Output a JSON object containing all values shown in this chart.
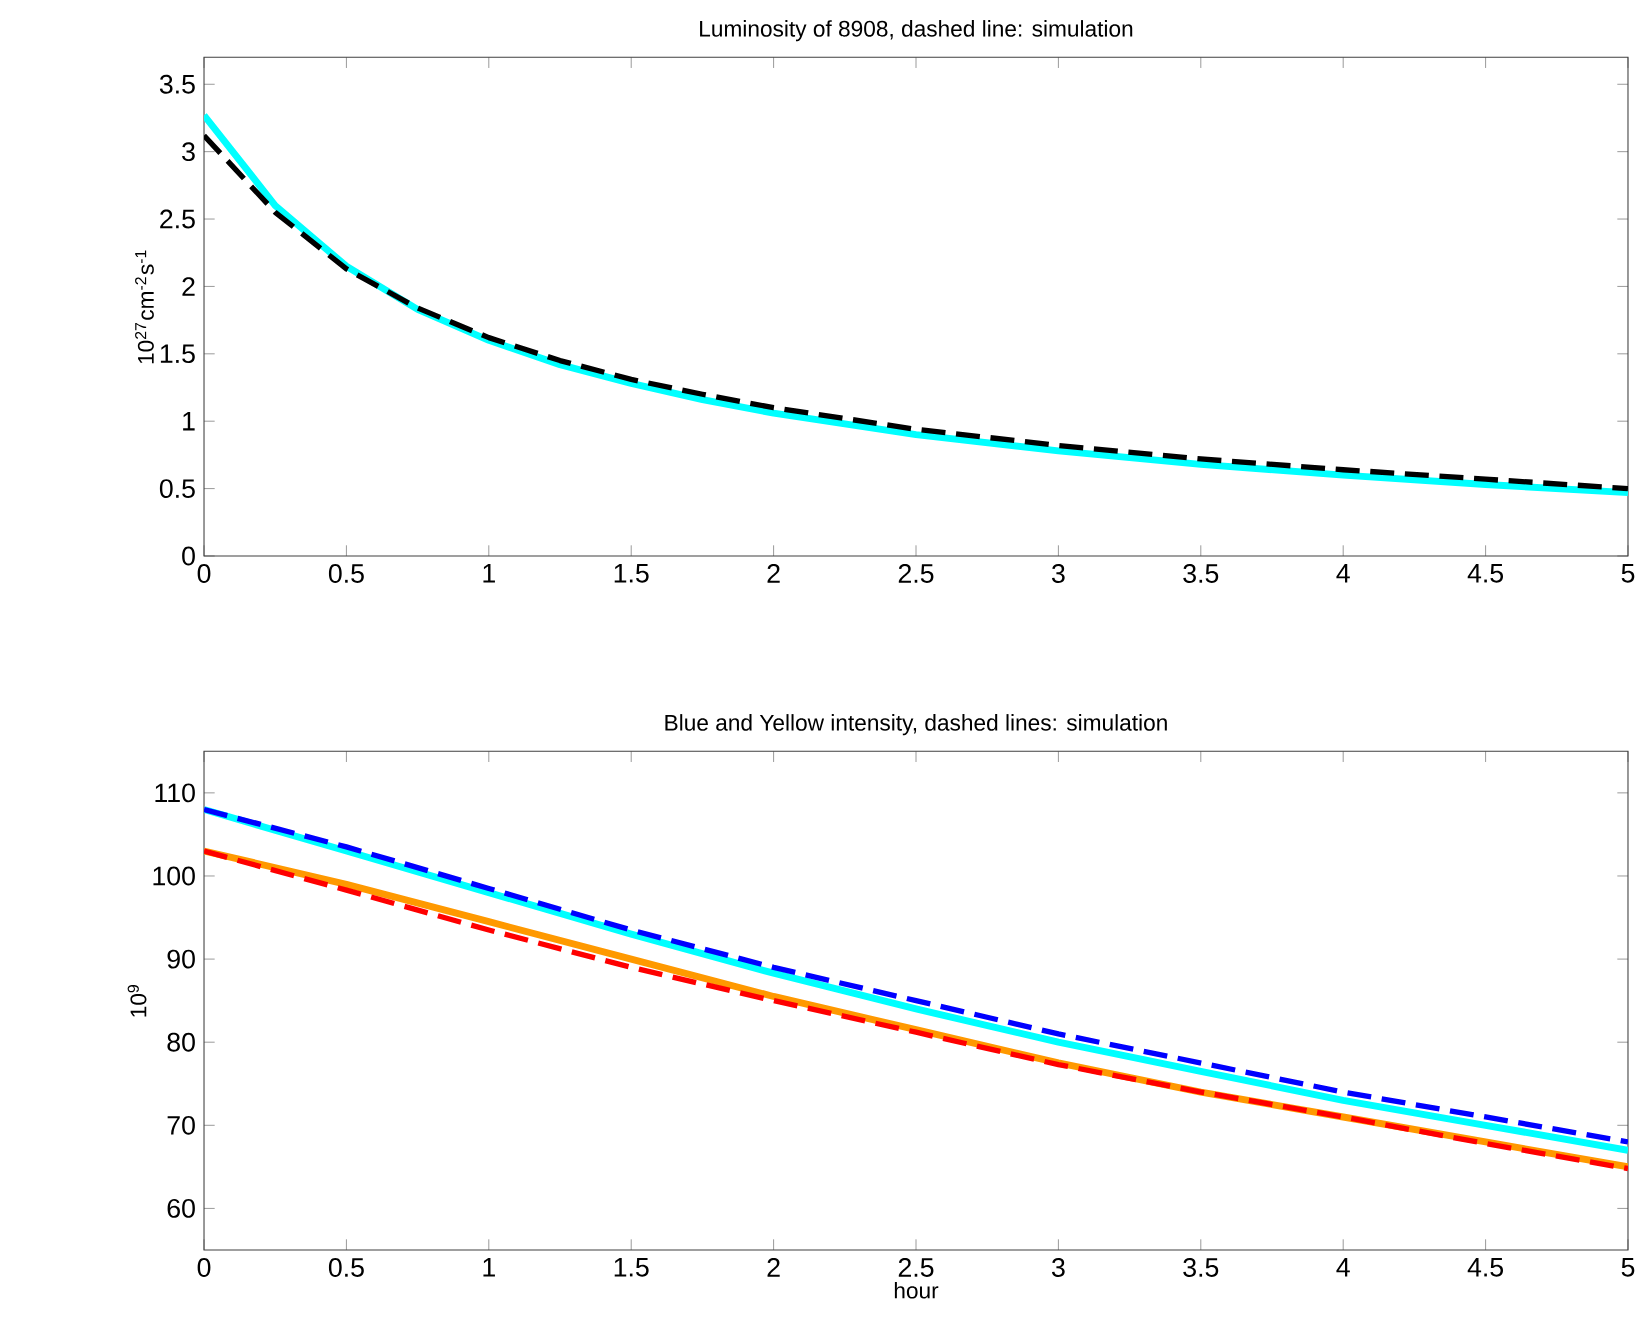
{
  "chart_data": [
    {
      "type": "line",
      "title": "Luminosity of 8908, dashed line: simulation",
      "ylabel": "10$^{27}$cm$^{-2}$s$^{-1}$",
      "marker": "none",
      "x": [
        0,
        0.25,
        0.5,
        0.75,
        1,
        1.25,
        1.5,
        1.75,
        2,
        2.5,
        3,
        3.5,
        4,
        4.5,
        5
      ],
      "xlim": [
        0,
        5
      ],
      "ylim": [
        0,
        3.7
      ],
      "xticks": [
        0,
        0.5,
        1,
        1.5,
        2,
        2.5,
        3,
        3.5,
        4,
        4.5,
        5
      ],
      "yticks": [
        0,
        0.5,
        1,
        1.5,
        2,
        2.5,
        3,
        3.5
      ],
      "series": [
        {
          "color": "#00ffff",
          "line_style": "solid",
          "values": [
            3.27,
            2.6,
            2.15,
            1.83,
            1.6,
            1.42,
            1.28,
            1.16,
            1.06,
            0.9,
            0.78,
            0.68,
            0.6,
            0.53,
            0.47
          ]
        },
        {
          "color": "#000000",
          "line_style": "dashed",
          "values": [
            3.12,
            2.55,
            2.13,
            1.84,
            1.62,
            1.45,
            1.31,
            1.2,
            1.1,
            0.94,
            0.82,
            0.72,
            0.64,
            0.57,
            0.5
          ]
        }
      ]
    },
    {
      "type": "line",
      "title": "Blue and Yellow intensity, dashed lines: simulation",
      "xlabel": "hour",
      "ylabel": "10$^{9}$",
      "marker": "none",
      "x": [
        0,
        0.5,
        1,
        1.5,
        2,
        2.5,
        3,
        3.5,
        4,
        4.5,
        5
      ],
      "xlim": [
        0,
        5
      ],
      "ylim": [
        55,
        115
      ],
      "xticks": [
        0,
        0.5,
        1,
        1.5,
        2,
        2.5,
        3,
        3.5,
        4,
        4.5,
        5
      ],
      "yticks": [
        60,
        70,
        80,
        90,
        100,
        110
      ],
      "series": [
        {
          "color": "#00ffff",
          "line_style": "solid",
          "values": [
            108,
            103,
            98,
            93,
            88.3,
            84,
            80,
            76.5,
            73,
            70,
            67
          ]
        },
        {
          "color": "#ff9900",
          "line_style": "solid",
          "values": [
            103,
            99,
            94.5,
            90,
            85.5,
            81.5,
            77.5,
            74,
            71,
            68,
            65
          ]
        },
        {
          "color": "#0000ff",
          "line_style": "dashed",
          "values": [
            108,
            103.5,
            98.5,
            93.5,
            89,
            85,
            81,
            77.5,
            74,
            71,
            68
          ]
        },
        {
          "color": "#ff0000",
          "line_style": "dashed",
          "values": [
            103,
            98.3,
            93.5,
            89,
            85,
            81.2,
            77.3,
            74,
            71,
            67.8,
            64.8
          ]
        }
      ]
    }
  ]
}
